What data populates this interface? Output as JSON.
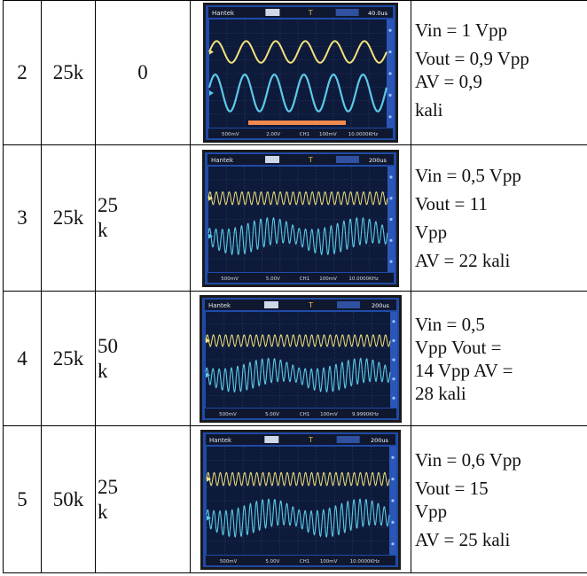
{
  "rows": [
    {
      "no": "2",
      "r1": "25k",
      "r2": [
        "0"
      ],
      "scope": {
        "brand": "Hantek",
        "trigger": "T",
        "timebase": "40.0us",
        "footer": [
          "500mV",
          "2.00V",
          "CH1",
          "100mV",
          "10.0000KHz"
        ],
        "yellow_cycles": 6,
        "blue_cycles": 6,
        "modulated": false,
        "orange_bar": true
      },
      "calc": [
        "Vin = 1 Vpp",
        "Vout = 0,9 Vpp",
        "AV = 0,9",
        "kali"
      ]
    },
    {
      "no": "3",
      "r1": "25k",
      "r2": [
        "25",
        "k"
      ],
      "scope": {
        "brand": "Hantek",
        "trigger": "T",
        "timebase": "200us",
        "footer": [
          "500mV",
          "5.00V",
          "CH1",
          "100mV",
          "10.0000KHz"
        ],
        "yellow_cycles": 28,
        "blue_cycles": 28,
        "modulated": true,
        "orange_bar": false
      },
      "calc": [
        "Vin = 0,5 Vpp",
        "Vout = 11",
        "Vpp",
        "AV = 22 kali"
      ]
    },
    {
      "no": "4",
      "r1": "25k",
      "r2": [
        "50",
        "k"
      ],
      "scope": {
        "brand": "Hantek",
        "trigger": "T",
        "timebase": "200us",
        "footer": [
          "500mV",
          "5.00V",
          "CH1",
          "100mV",
          "9.9990KHz"
        ],
        "yellow_cycles": 30,
        "blue_cycles": 30,
        "modulated": true,
        "orange_bar": false
      },
      "calc": [
        "Vin  = 0,5",
        "Vpp Vout =",
        "14 Vpp AV =",
        "28 kali"
      ]
    },
    {
      "no": "5",
      "r1": "50k",
      "r2": [
        "25",
        "k"
      ],
      "scope": {
        "brand": "Hantek",
        "trigger": "T",
        "timebase": "200us",
        "footer": [
          "500mV",
          "5.00V",
          "CH1",
          "100mV",
          "10.0000KHz"
        ],
        "yellow_cycles": 30,
        "blue_cycles": 30,
        "modulated": true,
        "orange_bar": false
      },
      "calc": [
        "Vin = 0,6 Vpp",
        "Vout = 15",
        "Vpp",
        "AV = 25 kali"
      ]
    }
  ],
  "colors": {
    "yellow_trace": "#f3e27a",
    "blue_trace": "#5cc8e6",
    "screen": "#0d1a3a",
    "grid": "#3a4d7a",
    "bezel": "#1f4aa8"
  }
}
